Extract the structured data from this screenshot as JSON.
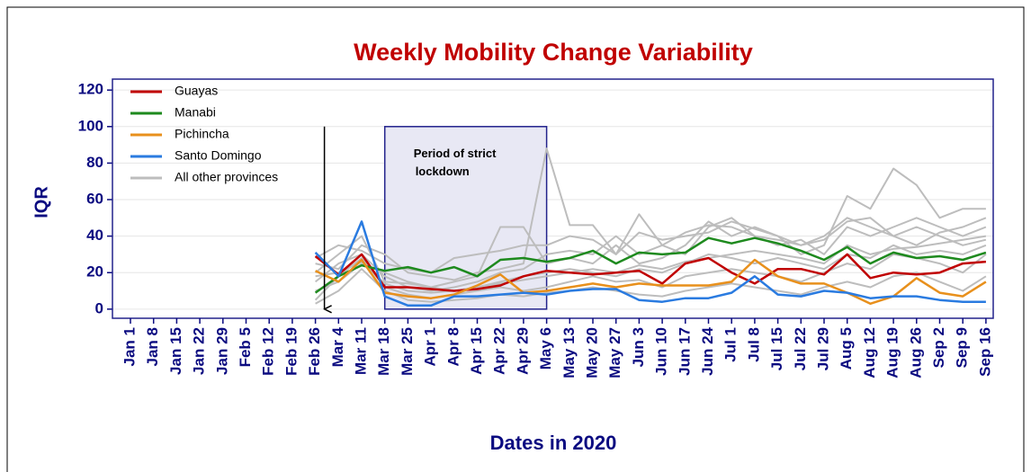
{
  "chart_data": {
    "type": "line",
    "title": "Weekly Mobility Change Variability",
    "xlabel": "Dates in 2020",
    "ylabel": "IQR",
    "categories": [
      "Jan 1",
      "Jan 8",
      "Jan 15",
      "Jan 22",
      "Jan 29",
      "Feb 5",
      "Feb 12",
      "Feb 19",
      "Feb 26",
      "Mar 4",
      "Mar 11",
      "Mar 18",
      "Mar 25",
      "Apr 1",
      "Apr 8",
      "Apr 15",
      "Apr 22",
      "Apr 29",
      "May 6",
      "May 13",
      "May 20",
      "May 27",
      "Jun 3",
      "Jun 10",
      "Jun 17",
      "Jun 24",
      "Jul 1",
      "Jul 8",
      "Jul 15",
      "Jul 22",
      "Jul 29",
      "Aug 5",
      "Aug 12",
      "Aug 19",
      "Aug 26",
      "Sep 2",
      "Sep 9",
      "Sep 16"
    ],
    "ylim": [
      -5,
      126
    ],
    "yticks": [
      0,
      20,
      40,
      60,
      80,
      100,
      120
    ],
    "grid": true,
    "legend": "upper left",
    "series": [
      {
        "name": "Guayas",
        "color": "#c00000",
        "values": [
          null,
          null,
          null,
          null,
          null,
          null,
          null,
          null,
          29,
          19,
          30,
          12,
          12,
          11,
          10,
          11,
          13,
          18,
          21,
          20,
          19,
          20,
          21,
          14,
          25,
          28,
          20,
          14,
          22,
          22,
          19,
          30,
          17,
          20,
          19,
          20,
          25,
          26
        ]
      },
      {
        "name": "Manabi",
        "color": "#1e8a1e",
        "values": [
          null,
          null,
          null,
          null,
          null,
          null,
          null,
          null,
          9,
          18,
          24,
          21,
          23,
          20,
          23,
          18,
          27,
          28,
          26,
          28,
          32,
          25,
          31,
          30,
          31,
          39,
          36,
          39,
          36,
          32,
          27,
          34,
          25,
          31,
          28,
          29,
          27,
          31
        ]
      },
      {
        "name": "Pichincha",
        "color": "#e8901c",
        "values": [
          null,
          null,
          null,
          null,
          null,
          null,
          null,
          null,
          21,
          15,
          27,
          9,
          7,
          6,
          8,
          13,
          19,
          9,
          10,
          12,
          14,
          12,
          14,
          13,
          13,
          13,
          15,
          27,
          18,
          14,
          14,
          9,
          3,
          7,
          17,
          9,
          7,
          15
        ]
      },
      {
        "name": "Santo Domingo",
        "color": "#2a7be0",
        "values": [
          null,
          null,
          null,
          null,
          null,
          null,
          null,
          null,
          31,
          18,
          48,
          7,
          2,
          2,
          7,
          7,
          8,
          9,
          8,
          10,
          11,
          11,
          5,
          4,
          6,
          6,
          9,
          18,
          8,
          7,
          10,
          9,
          6,
          7,
          7,
          5,
          4,
          4
        ]
      }
    ],
    "other_provinces": {
      "name": "All other provinces",
      "color": "#bdbdbd",
      "lines": [
        [
          null,
          null,
          null,
          null,
          null,
          null,
          null,
          null,
          25,
          22,
          35,
          30,
          20,
          18,
          16,
          20,
          22,
          25,
          88,
          46,
          46,
          30,
          52,
          35,
          30,
          45,
          50,
          40,
          38,
          35,
          40,
          50,
          45,
          40,
          35,
          42,
          45,
          50
        ],
        [
          null,
          null,
          null,
          null,
          null,
          null,
          null,
          null,
          20,
          30,
          40,
          15,
          14,
          12,
          15,
          18,
          45,
          45,
          25,
          28,
          25,
          35,
          25,
          28,
          35,
          48,
          40,
          45,
          40,
          30,
          35,
          62,
          55,
          77,
          68,
          50,
          55,
          55
        ],
        [
          null,
          null,
          null,
          null,
          null,
          null,
          null,
          null,
          15,
          25,
          30,
          18,
          12,
          10,
          12,
          15,
          20,
          22,
          30,
          32,
          30,
          40,
          30,
          35,
          42,
          46,
          45,
          40,
          35,
          38,
          30,
          45,
          40,
          45,
          50,
          45,
          40,
          45
        ],
        [
          null,
          null,
          null,
          null,
          null,
          null,
          null,
          null,
          10,
          15,
          25,
          20,
          15,
          12,
          10,
          12,
          15,
          18,
          20,
          22,
          20,
          18,
          22,
          20,
          25,
          30,
          28,
          25,
          28,
          25,
          22,
          30,
          28,
          35,
          30,
          32,
          30,
          35
        ],
        [
          null,
          null,
          null,
          null,
          null,
          null,
          null,
          null,
          5,
          18,
          28,
          12,
          8,
          6,
          8,
          10,
          12,
          10,
          12,
          15,
          18,
          15,
          16,
          12,
          18,
          20,
          22,
          20,
          18,
          15,
          20,
          25,
          22,
          30,
          28,
          25,
          20,
          30
        ],
        [
          null,
          null,
          null,
          null,
          null,
          null,
          null,
          null,
          3,
          10,
          22,
          10,
          5,
          4,
          5,
          6,
          8,
          7,
          9,
          10,
          12,
          10,
          8,
          7,
          10,
          12,
          14,
          12,
          10,
          8,
          12,
          15,
          12,
          18,
          20,
          15,
          10,
          18
        ],
        [
          null,
          null,
          null,
          null,
          null,
          null,
          null,
          null,
          28,
          35,
          32,
          25,
          22,
          20,
          28,
          30,
          32,
          35,
          35,
          40,
          38,
          30,
          42,
          38,
          40,
          42,
          48,
          44,
          40,
          35,
          38,
          48,
          50,
          40,
          45,
          40,
          35,
          38
        ],
        [
          null,
          null,
          null,
          null,
          null,
          null,
          null,
          null,
          18,
          20,
          26,
          14,
          10,
          9,
          10,
          12,
          14,
          16,
          18,
          20,
          22,
          20,
          24,
          22,
          26,
          28,
          30,
          32,
          30,
          28,
          25,
          35,
          30,
          33,
          34,
          36,
          38,
          40
        ]
      ]
    },
    "lockdown": {
      "text": [
        "Period of strict",
        "lockdown"
      ],
      "from": "Mar 18",
      "to": "May 6",
      "ylim": [
        0,
        100
      ]
    },
    "arrow": {
      "at": "Feb 26",
      "ylim": [
        100,
        0
      ]
    }
  }
}
